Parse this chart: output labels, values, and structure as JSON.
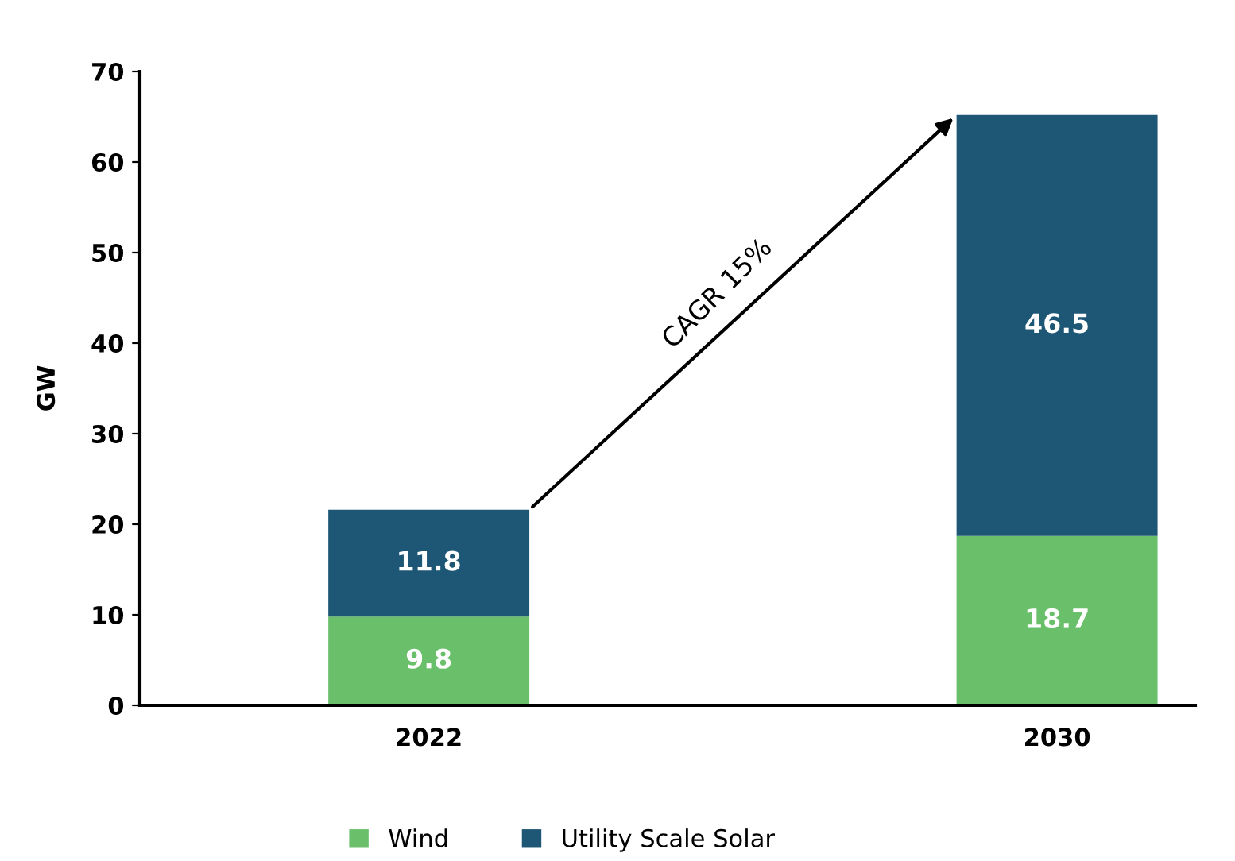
{
  "chart_data": {
    "type": "bar",
    "stacked": true,
    "ylabel": "GW",
    "categories": [
      "2022",
      "2030"
    ],
    "series": [
      {
        "name": "Wind",
        "color": "#6abf6a",
        "values": [
          9.8,
          18.7
        ]
      },
      {
        "name": "Utility Scale Solar",
        "color": "#1e5675",
        "values": [
          11.8,
          46.5
        ]
      }
    ],
    "ylim": [
      0,
      70
    ],
    "yticks": [
      0,
      10,
      20,
      30,
      40,
      50,
      60,
      70
    ],
    "data_labels": true,
    "legend": "bottom",
    "grid": false,
    "annotations": [
      "CAGR 15%"
    ]
  }
}
